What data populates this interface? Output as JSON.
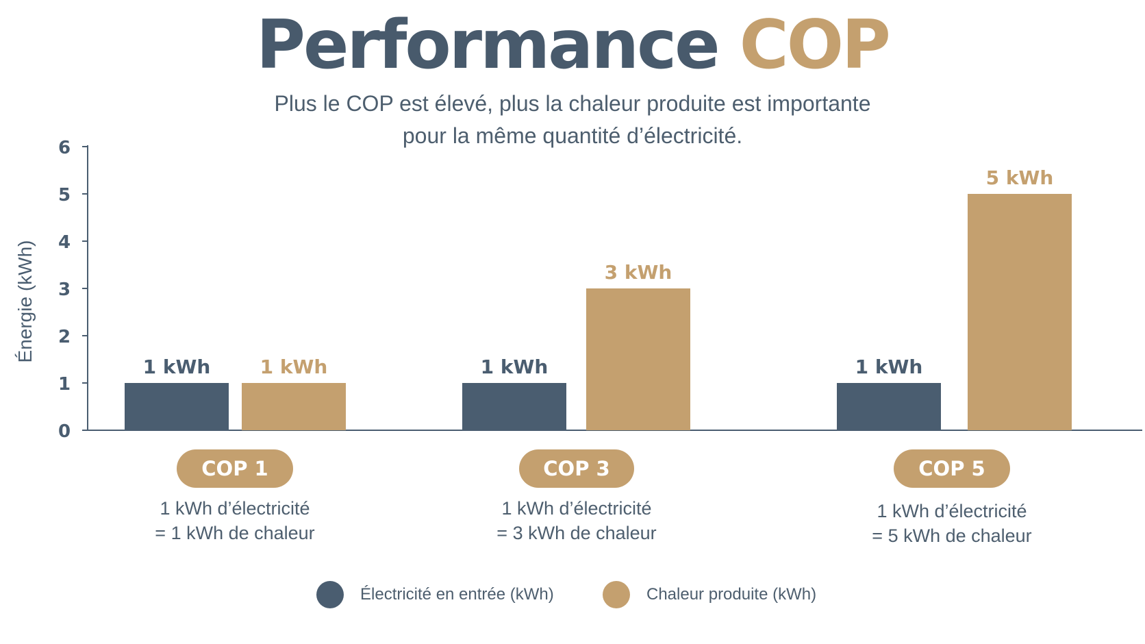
{
  "header": {
    "title_part1": "Performance",
    "title_part2": "COP",
    "subtitle_line1": "Plus le COP est élevé, plus la chaleur produite est importante",
    "subtitle_line2": "pour la même quantité d’électricité."
  },
  "colors": {
    "electricity": "#4a5d70",
    "heat": "#c4a06f",
    "text": "#4d5e6e",
    "axis": "#4a5d70"
  },
  "chart_data": {
    "type": "bar",
    "categories": [
      "COP 1",
      "COP 3",
      "COP 5"
    ],
    "ylabel": "Énergie (kWh)",
    "ylim": [
      0,
      6
    ],
    "yticks": [
      "0",
      "1",
      "2",
      "3",
      "4",
      "5",
      "6"
    ],
    "grid": false,
    "legend_position": "bottom",
    "series": [
      {
        "name": "Électricité en entrée (kWh)",
        "values": [
          1,
          1,
          1
        ],
        "labels": [
          "1 kWh",
          "1 kWh",
          "1 kWh"
        ]
      },
      {
        "name": "Chaleur produite (kWh)",
        "values": [
          1,
          3,
          5
        ],
        "labels": [
          "1 kWh",
          "3 kWh",
          "5 kWh"
        ]
      }
    ],
    "annotations": [
      {
        "line1": "1 kWh d’électricité",
        "line2": "= 1 kWh de chaleur"
      },
      {
        "line1": "1 kWh d’électricité",
        "line2": "= 3 kWh de chaleur"
      },
      {
        "line1": "1 kWh d’électricité",
        "line2": "= 5 kWh de chaleur"
      }
    ]
  }
}
